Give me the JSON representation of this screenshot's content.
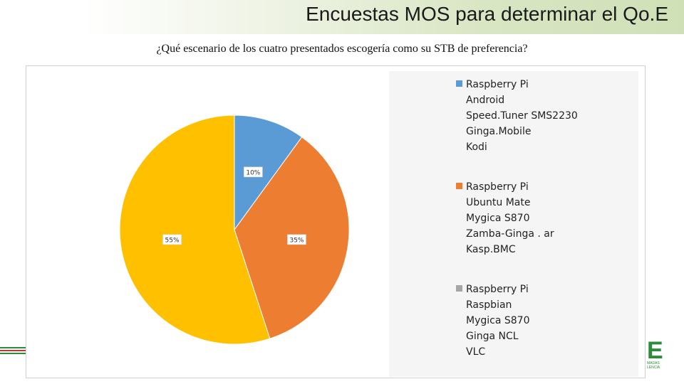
{
  "slide": {
    "title": "Encuestas MOS para determinar el Qo.E",
    "question": "¿Qué escenario de los cuatro presentados escogería como su STB de preferencia?"
  },
  "logo": {
    "text_fragment": "E",
    "sub_fragment": "MADAS",
    "sub_fragment_2": "LENCIA",
    "color": "#2e8b3a"
  },
  "chart_data": {
    "type": "pie",
    "legend_position": "right",
    "slices": [
      {
        "value": 10,
        "label": "10%",
        "color": "#5b9bd5",
        "legend_lines": [
          "Raspberry Pi",
          "Android",
          "Speed.Tuner SMS2230",
          "Ginga.Mobile",
          "Kodi"
        ]
      },
      {
        "value": 35,
        "label": "35%",
        "color": "#ed7d31",
        "legend_lines": [
          "Raspberry Pi",
          "Ubuntu Mate",
          "Mygica S870",
          "Zamba-Ginga . ar",
          "Kasp.BMC"
        ]
      },
      {
        "value": 55,
        "label": "55%",
        "color": "#a5a5a5",
        "legend_lines": [
          "Raspberry Pi",
          "Raspbian",
          "Mygica S870",
          "Ginga NCL",
          "VLC"
        ]
      }
    ],
    "drawn_color_third_slice": "#ffc000"
  }
}
